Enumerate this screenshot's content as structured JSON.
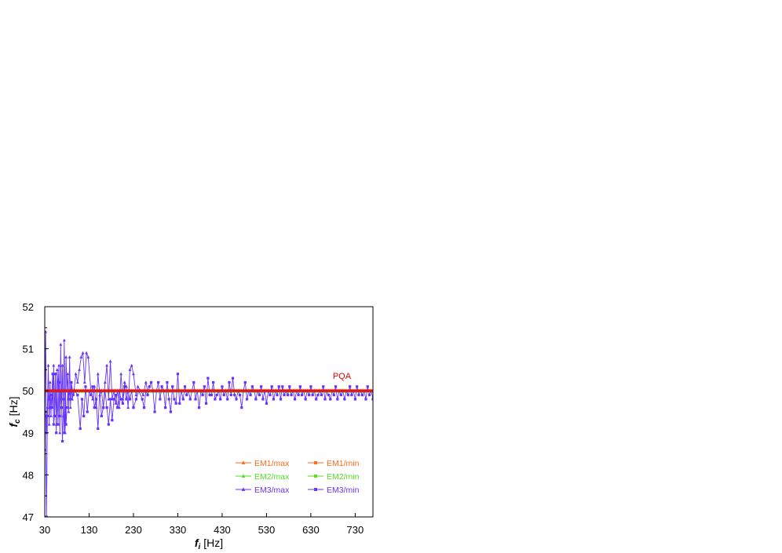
{
  "chart_data": {
    "type": "line",
    "title": "",
    "xlabel": {
      "var": "f",
      "sub": "i",
      "unit": "[Hz]"
    },
    "ylabel": {
      "var": "f",
      "sub": "c",
      "unit": "[Hz]"
    },
    "xlim": [
      30,
      770
    ],
    "ylim": [
      47,
      52
    ],
    "xticks": [
      30,
      130,
      230,
      330,
      430,
      530,
      630,
      730
    ],
    "yticks": [
      47,
      48,
      49,
      50,
      51,
      52
    ],
    "grid": false,
    "legend_position": "bottom-right",
    "annotations": [
      {
        "text": "PQA",
        "x": 700,
        "y": 50.3,
        "color": "#dd0000"
      }
    ],
    "reference_line": {
      "y": 50.0,
      "color": "#ee1111"
    },
    "series": [
      {
        "name": "EM1/max",
        "color": "#ff6a1a",
        "marker": "triangle",
        "y_const": 50.02
      },
      {
        "name": "EM1/min",
        "color": "#ff6a1a",
        "marker": "square",
        "y_const": 50.0
      },
      {
        "name": "EM2/max",
        "color": "#55dd22",
        "marker": "triangle",
        "y_const": 50.01
      },
      {
        "name": "EM2/min",
        "color": "#55dd22",
        "marker": "square",
        "y_const": 49.98
      },
      {
        "name": "EM3/max",
        "color": "#6633ff",
        "marker": "triangle",
        "points": [
          [
            30,
            48.6
          ],
          [
            32,
            51.4
          ],
          [
            34,
            49.0
          ],
          [
            36,
            49.6
          ],
          [
            38,
            50.6
          ],
          [
            40,
            49.2
          ],
          [
            42,
            50.2
          ],
          [
            44,
            49.4
          ],
          [
            46,
            50.0
          ],
          [
            48,
            49.6
          ],
          [
            50,
            50.6
          ],
          [
            52,
            49.4
          ],
          [
            54,
            50.4
          ],
          [
            56,
            49.2
          ],
          [
            58,
            50.5
          ],
          [
            60,
            50.0
          ],
          [
            62,
            50.6
          ],
          [
            64,
            49.0
          ],
          [
            66,
            51.1
          ],
          [
            68,
            49.6
          ],
          [
            70,
            50.6
          ],
          [
            72,
            49.4
          ],
          [
            74,
            51.2
          ],
          [
            76,
            49.0
          ],
          [
            78,
            50.8
          ],
          [
            80,
            50.0
          ],
          [
            82,
            50.4
          ],
          [
            84,
            49.5
          ],
          [
            86,
            50.8
          ],
          [
            88,
            49.6
          ],
          [
            90,
            50.2
          ],
          [
            92,
            49.8
          ],
          [
            96,
            50.0
          ],
          [
            100,
            50.4
          ],
          [
            104,
            50.2
          ],
          [
            108,
            50.5
          ],
          [
            112,
            50.8
          ],
          [
            116,
            50.9
          ],
          [
            120,
            50.2
          ],
          [
            124,
            50.9
          ],
          [
            128,
            50.8
          ],
          [
            134,
            50.0
          ],
          [
            138,
            49.8
          ],
          [
            142,
            50.1
          ],
          [
            146,
            49.6
          ],
          [
            150,
            50.4
          ],
          [
            154,
            49.9
          ],
          [
            158,
            50.0
          ],
          [
            162,
            49.6
          ],
          [
            166,
            50.2
          ],
          [
            170,
            50.6
          ],
          [
            174,
            49.8
          ],
          [
            178,
            50.7
          ],
          [
            182,
            49.8
          ],
          [
            186,
            50.0
          ],
          [
            190,
            49.7
          ],
          [
            194,
            50.0
          ],
          [
            198,
            49.6
          ],
          [
            202,
            50.4
          ],
          [
            206,
            49.8
          ],
          [
            210,
            50.2
          ],
          [
            214,
            50.1
          ],
          [
            218,
            49.6
          ],
          [
            222,
            50.5
          ],
          [
            226,
            50.6
          ],
          [
            230,
            50.4
          ],
          [
            236,
            49.9
          ],
          [
            240,
            50.1
          ],
          [
            246,
            50.0
          ],
          [
            252,
            49.9
          ],
          [
            258,
            50.2
          ],
          [
            262,
            50.0
          ]
        ]
      },
      {
        "name": "EM3/min",
        "color": "#6633ff",
        "marker": "square",
        "points": [
          [
            30,
            49.5
          ],
          [
            32,
            49.4
          ],
          [
            34,
            47.0
          ],
          [
            36,
            49.4
          ],
          [
            38,
            50.0
          ],
          [
            40,
            49.8
          ],
          [
            42,
            50.0
          ],
          [
            44,
            49.6
          ],
          [
            46,
            49.9
          ],
          [
            48,
            50.4
          ],
          [
            50,
            49.2
          ],
          [
            52,
            49.4
          ],
          [
            54,
            50.4
          ],
          [
            56,
            49.0
          ],
          [
            58,
            50.0
          ],
          [
            60,
            49.2
          ],
          [
            62,
            50.2
          ],
          [
            64,
            49.4
          ],
          [
            66,
            50.0
          ],
          [
            68,
            49.6
          ],
          [
            70,
            48.8
          ],
          [
            72,
            49.8
          ],
          [
            74,
            49.0
          ],
          [
            76,
            50.0
          ],
          [
            78,
            49.2
          ],
          [
            80,
            49.6
          ],
          [
            82,
            50.0
          ],
          [
            84,
            49.8
          ],
          [
            86,
            50.0
          ],
          [
            88,
            49.8
          ],
          [
            90,
            50.2
          ],
          [
            94,
            49.9
          ],
          [
            98,
            50.0
          ],
          [
            104,
            49.9
          ],
          [
            110,
            49.1
          ],
          [
            114,
            49.8
          ],
          [
            118,
            49.4
          ],
          [
            122,
            50.1
          ],
          [
            126,
            49.5
          ],
          [
            130,
            50.0
          ],
          [
            134,
            49.9
          ],
          [
            138,
            50.1
          ],
          [
            142,
            49.6
          ],
          [
            146,
            49.8
          ],
          [
            150,
            49.1
          ],
          [
            154,
            50.0
          ],
          [
            158,
            49.4
          ],
          [
            162,
            49.6
          ],
          [
            166,
            50.0
          ],
          [
            170,
            49.6
          ],
          [
            174,
            49.2
          ],
          [
            178,
            49.8
          ],
          [
            182,
            49.3
          ],
          [
            186,
            49.8
          ],
          [
            190,
            49.9
          ],
          [
            194,
            49.6
          ],
          [
            198,
            50.0
          ],
          [
            202,
            49.8
          ],
          [
            206,
            49.7
          ],
          [
            210,
            50.1
          ],
          [
            214,
            49.8
          ],
          [
            218,
            50.0
          ],
          [
            222,
            49.8
          ],
          [
            226,
            50.0
          ],
          [
            230,
            49.6
          ],
          [
            236,
            49.8
          ],
          [
            242,
            50.0
          ],
          [
            250,
            49.8
          ],
          [
            254,
            49.6
          ],
          [
            258,
            50.0
          ],
          [
            262,
            49.9
          ],
          [
            266,
            50.1
          ],
          [
            270,
            50.2
          ],
          [
            274,
            50.0
          ],
          [
            278,
            49.5
          ],
          [
            282,
            50.0
          ],
          [
            286,
            50.2
          ],
          [
            290,
            49.8
          ],
          [
            294,
            50.1
          ],
          [
            298,
            50.0
          ],
          [
            302,
            49.6
          ],
          [
            306,
            50.2
          ],
          [
            310,
            49.8
          ],
          [
            314,
            49.5
          ],
          [
            318,
            50.1
          ],
          [
            322,
            49.8
          ],
          [
            326,
            49.7
          ],
          [
            330,
            50.4
          ],
          [
            334,
            49.7
          ],
          [
            338,
            50.0
          ],
          [
            342,
            49.8
          ],
          [
            346,
            50.1
          ],
          [
            350,
            49.9
          ],
          [
            354,
            50.0
          ],
          [
            358,
            49.8
          ],
          [
            362,
            50.0
          ],
          [
            366,
            50.2
          ],
          [
            370,
            49.8
          ],
          [
            374,
            50.0
          ],
          [
            378,
            49.6
          ],
          [
            382,
            50.0
          ],
          [
            386,
            49.9
          ],
          [
            390,
            50.1
          ],
          [
            394,
            49.7
          ],
          [
            398,
            50.3
          ],
          [
            402,
            49.9
          ],
          [
            406,
            49.9
          ],
          [
            410,
            50.2
          ],
          [
            414,
            49.8
          ],
          [
            418,
            49.9
          ],
          [
            422,
            50.0
          ],
          [
            426,
            49.8
          ],
          [
            430,
            50.1
          ],
          [
            434,
            49.9
          ],
          [
            438,
            50.0
          ],
          [
            442,
            49.8
          ],
          [
            446,
            50.2
          ],
          [
            450,
            49.9
          ],
          [
            454,
            50.3
          ],
          [
            458,
            49.9
          ],
          [
            462,
            49.8
          ],
          [
            466,
            50.0
          ],
          [
            470,
            49.9
          ],
          [
            474,
            49.6
          ],
          [
            478,
            50.0
          ],
          [
            482,
            50.2
          ],
          [
            486,
            49.8
          ],
          [
            490,
            50.0
          ],
          [
            494,
            49.9
          ],
          [
            498,
            50.1
          ],
          [
            502,
            50.0
          ],
          [
            506,
            49.8
          ],
          [
            510,
            50.0
          ],
          [
            514,
            49.9
          ],
          [
            518,
            50.1
          ],
          [
            522,
            49.8
          ],
          [
            526,
            50.0
          ],
          [
            530,
            49.7
          ],
          [
            534,
            50.0
          ],
          [
            538,
            49.9
          ],
          [
            542,
            50.1
          ],
          [
            546,
            49.8
          ],
          [
            550,
            50.0
          ],
          [
            554,
            49.9
          ],
          [
            558,
            50.1
          ],
          [
            562,
            49.8
          ],
          [
            566,
            50.1
          ],
          [
            570,
            49.9
          ],
          [
            574,
            50.0
          ],
          [
            578,
            49.9
          ],
          [
            582,
            50.1
          ],
          [
            586,
            49.9
          ],
          [
            590,
            50.0
          ],
          [
            594,
            49.8
          ],
          [
            598,
            50.0
          ],
          [
            602,
            49.9
          ],
          [
            606,
            50.1
          ],
          [
            610,
            49.9
          ],
          [
            614,
            50.0
          ],
          [
            618,
            49.8
          ],
          [
            622,
            50.0
          ],
          [
            626,
            49.9
          ],
          [
            630,
            50.1
          ],
          [
            634,
            49.9
          ],
          [
            638,
            50.0
          ],
          [
            642,
            49.8
          ],
          [
            646,
            49.9
          ],
          [
            650,
            50.0
          ],
          [
            654,
            49.9
          ],
          [
            658,
            50.1
          ],
          [
            662,
            49.8
          ],
          [
            666,
            50.0
          ],
          [
            670,
            49.9
          ],
          [
            674,
            49.8
          ],
          [
            678,
            50.0
          ],
          [
            682,
            49.9
          ],
          [
            686,
            50.1
          ],
          [
            690,
            49.8
          ],
          [
            694,
            50.0
          ],
          [
            698,
            49.9
          ],
          [
            702,
            50.0
          ],
          [
            706,
            49.8
          ],
          [
            710,
            50.0
          ],
          [
            714,
            49.9
          ],
          [
            718,
            50.1
          ],
          [
            722,
            49.9
          ],
          [
            726,
            50.0
          ],
          [
            730,
            49.8
          ],
          [
            734,
            50.1
          ],
          [
            738,
            49.9
          ],
          [
            742,
            50.0
          ],
          [
            746,
            49.9
          ],
          [
            750,
            50.0
          ],
          [
            754,
            49.8
          ],
          [
            758,
            50.1
          ],
          [
            762,
            49.9
          ],
          [
            766,
            50.0
          ],
          [
            770,
            49.8
          ]
        ]
      }
    ]
  }
}
